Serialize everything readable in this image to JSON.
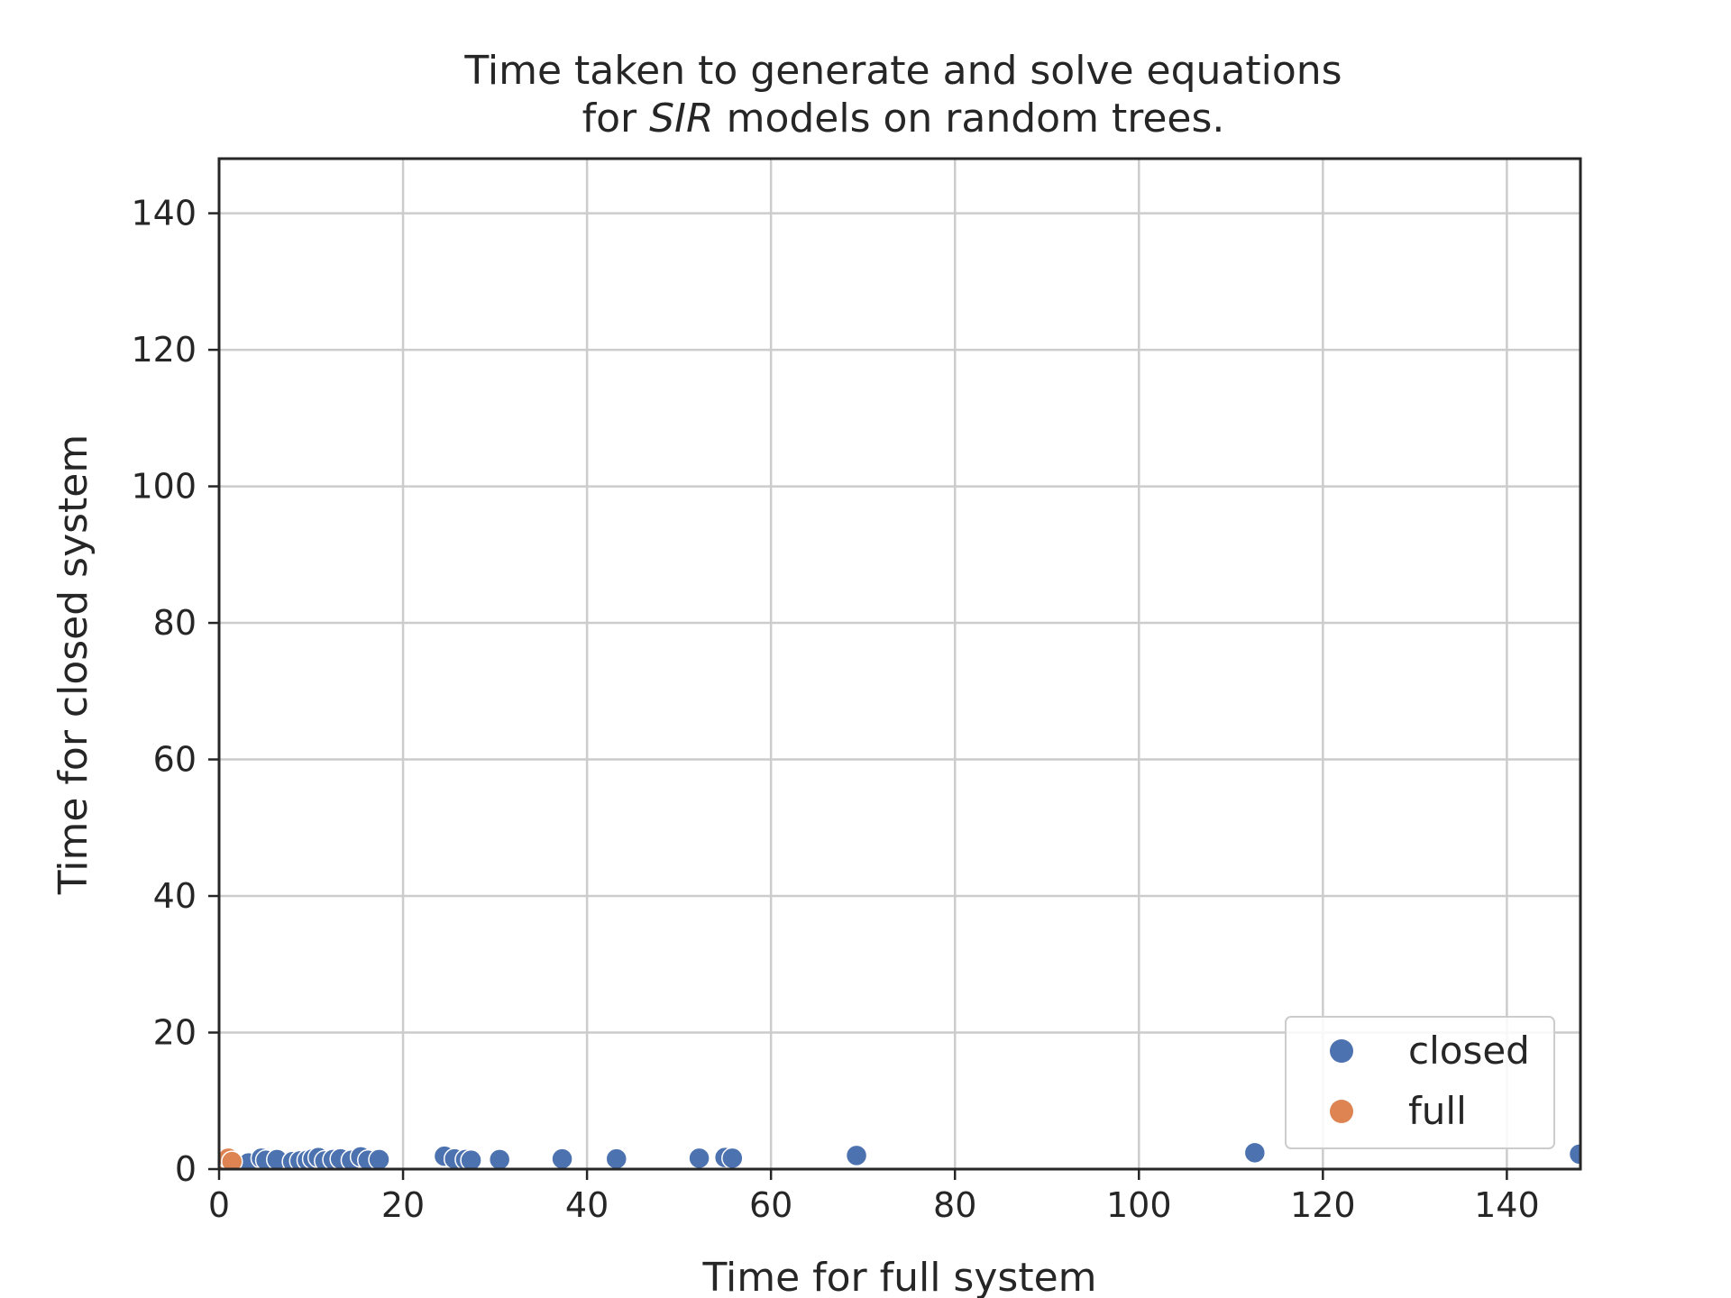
{
  "chart_data": {
    "type": "scatter",
    "title": [
      "Time taken to generate and solve equations",
      "for SIR models on random trees."
    ],
    "title_italic_word": "SIR",
    "xlabel": "Time for full system",
    "ylabel": "Time for closed system",
    "xlim": [
      0,
      148
    ],
    "ylim": [
      0,
      148
    ],
    "xticks": [
      0,
      20,
      40,
      60,
      80,
      100,
      120,
      140
    ],
    "yticks": [
      0,
      20,
      40,
      60,
      80,
      100,
      120,
      140
    ],
    "grid": true,
    "legend_position": "lower-right",
    "series": [
      {
        "name": "closed",
        "color": "#4c72b0",
        "points": [
          [
            3.2,
            0.9
          ],
          [
            4.6,
            1.6
          ],
          [
            5.1,
            1.3
          ],
          [
            6.3,
            1.4
          ],
          [
            8.0,
            1.1
          ],
          [
            8.8,
            1.2
          ],
          [
            9.6,
            1.3
          ],
          [
            10.2,
            1.5
          ],
          [
            10.8,
            1.7
          ],
          [
            11.5,
            1.2
          ],
          [
            12.4,
            1.4
          ],
          [
            13.2,
            1.5
          ],
          [
            14.4,
            1.3
          ],
          [
            15.4,
            1.8
          ],
          [
            16.2,
            1.3
          ],
          [
            17.4,
            1.4
          ],
          [
            24.5,
            1.9
          ],
          [
            25.6,
            1.5
          ],
          [
            26.8,
            1.4
          ],
          [
            27.4,
            1.3
          ],
          [
            30.5,
            1.4
          ],
          [
            37.3,
            1.5
          ],
          [
            43.2,
            1.5
          ],
          [
            52.2,
            1.6
          ],
          [
            55.0,
            1.7
          ],
          [
            55.8,
            1.6
          ],
          [
            69.3,
            2.0
          ],
          [
            112.6,
            2.4
          ],
          [
            147.9,
            2.2
          ]
        ]
      },
      {
        "name": "full",
        "color": "#dd8452",
        "points": [
          [
            0.5,
            0.8
          ],
          [
            1.0,
            1.6
          ],
          [
            1.4,
            1.1
          ]
        ]
      }
    ]
  }
}
